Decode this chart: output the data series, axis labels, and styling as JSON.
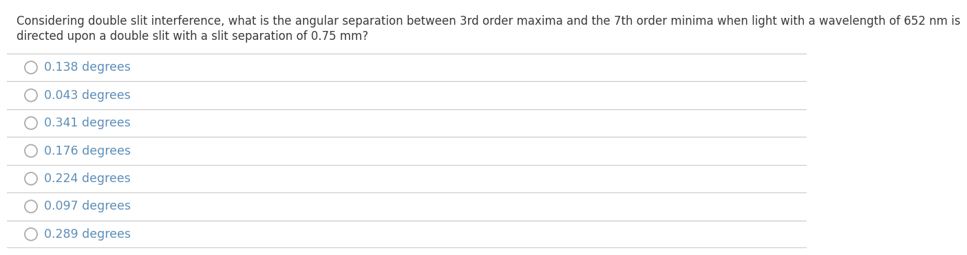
{
  "question_line1": "Considering double slit interference, what is the angular separation between 3rd order maxima and the 7th order minima when light with a wavelength of 652 nm is",
  "question_line2": "directed upon a double slit with a slit separation of 0.75 mm?",
  "question_color": "#3a3a3a",
  "options": [
    "0.138 degrees",
    "0.043 degrees",
    "0.341 degrees",
    "0.176 degrees",
    "0.224 degrees",
    "0.097 degrees",
    "0.289 degrees"
  ],
  "option_color": "#5b8db8",
  "circle_color": "#aaaaaa",
  "divider_color": "#cccccc",
  "background_color": "#ffffff",
  "question_fontsize": 12.0,
  "option_fontsize": 12.5
}
